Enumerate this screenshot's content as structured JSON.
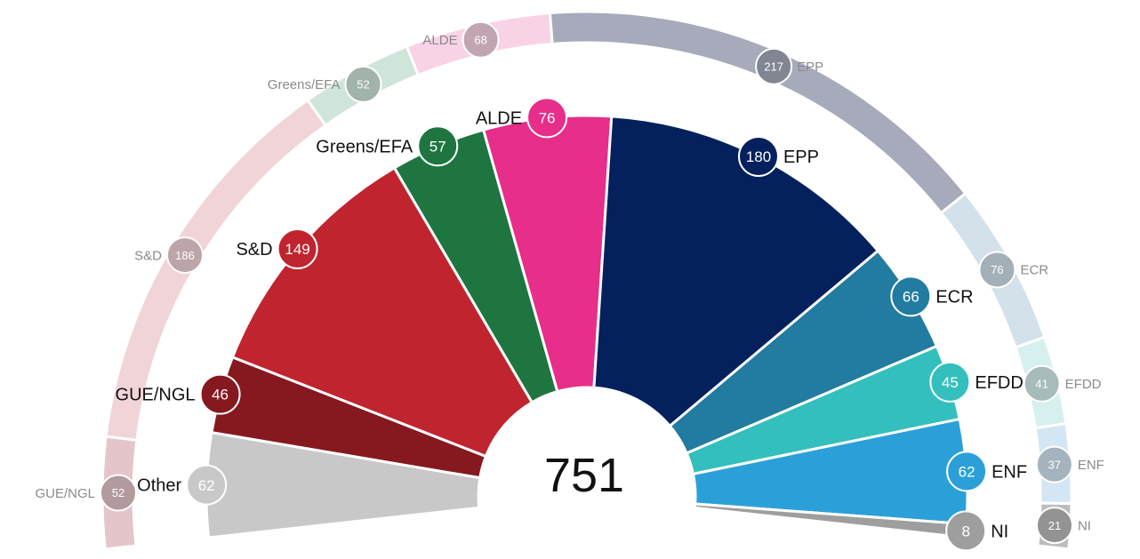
{
  "chart_data": {
    "type": "parliament-donut",
    "total_seats": "751",
    "inner_ring": {
      "parties": [
        {
          "name": "Other",
          "seats": 62,
          "color": "#c8c8c8"
        },
        {
          "name": "GUE/NGL",
          "seats": 46,
          "color": "#86191f"
        },
        {
          "name": "S&D",
          "seats": 149,
          "color": "#c0242f"
        },
        {
          "name": "Greens/EFA",
          "seats": 57,
          "color": "#1e7540"
        },
        {
          "name": "ALDE",
          "seats": 76,
          "color": "#e62e8a"
        },
        {
          "name": "EPP",
          "seats": 180,
          "color": "#04215d"
        },
        {
          "name": "ECR",
          "seats": 66,
          "color": "#227ba0"
        },
        {
          "name": "EFDD",
          "seats": 45,
          "color": "#33bfbd"
        },
        {
          "name": "ENF",
          "seats": 62,
          "color": "#2ba0d8"
        },
        {
          "name": "NI",
          "seats": 8,
          "color": "#9e9e9e"
        }
      ]
    },
    "outer_ring": {
      "parties": [
        {
          "name": "GUE/NGL",
          "seats": 52,
          "color": "#e4c6ca"
        },
        {
          "name": "S&D",
          "seats": 186,
          "color": "#f1d4d7"
        },
        {
          "name": "Greens/EFA",
          "seats": 52,
          "color": "#d0e5d9"
        },
        {
          "name": "ALDE",
          "seats": 68,
          "color": "#f8d3e5"
        },
        {
          "name": "EPP",
          "seats": 217,
          "color": "#a7aabb"
        },
        {
          "name": "ECR",
          "seats": 76,
          "color": "#d2e1ea"
        },
        {
          "name": "EFDD",
          "seats": 41,
          "color": "#d6f0ef"
        },
        {
          "name": "ENF",
          "seats": 37,
          "color": "#d4e6f3"
        },
        {
          "name": "NI",
          "seats": 21,
          "color": "#bdbdbd"
        }
      ]
    }
  }
}
